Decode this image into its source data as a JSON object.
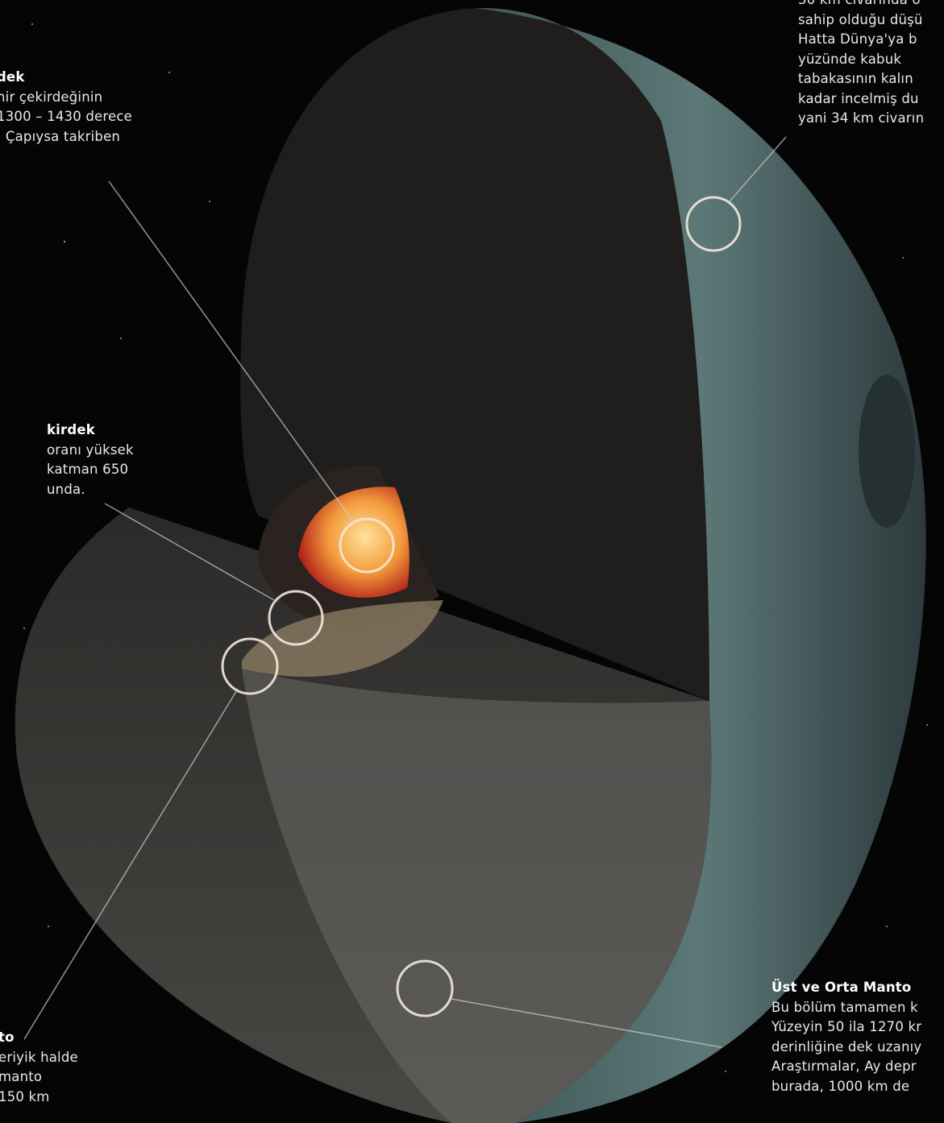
{
  "labels": [
    {
      "title": "dek",
      "lines": [
        "hir çekirdeğinin",
        "1300 – 1430 derece",
        ". Çapıysa takriben"
      ]
    },
    {
      "title": "kirdek",
      "lines": [
        "oranı yüksek",
        "katman 650",
        "unda."
      ]
    },
    {
      "title": "to",
      "lines": [
        "eriyik halde",
        "manto",
        "150 km"
      ]
    },
    {
      "title": "Üst ve Orta Manto",
      "lines": [
        "Bu bölüm tamamen k",
        "Yüzeyin 50 ila 1270 kr",
        "derinliğine dek uzanıy",
        "Araştırmalar, Ay depr",
        "burada, 1000 km de"
      ]
    },
    {
      "title": "",
      "lines": [
        "30 km civarında o",
        "sahip olduğu düşü",
        "Hatta Dünya'ya b",
        "yüzünde kabuk",
        "tabakasının kalın",
        "kadar incelmiş du",
        "yani 34 km civarın"
      ]
    }
  ]
}
